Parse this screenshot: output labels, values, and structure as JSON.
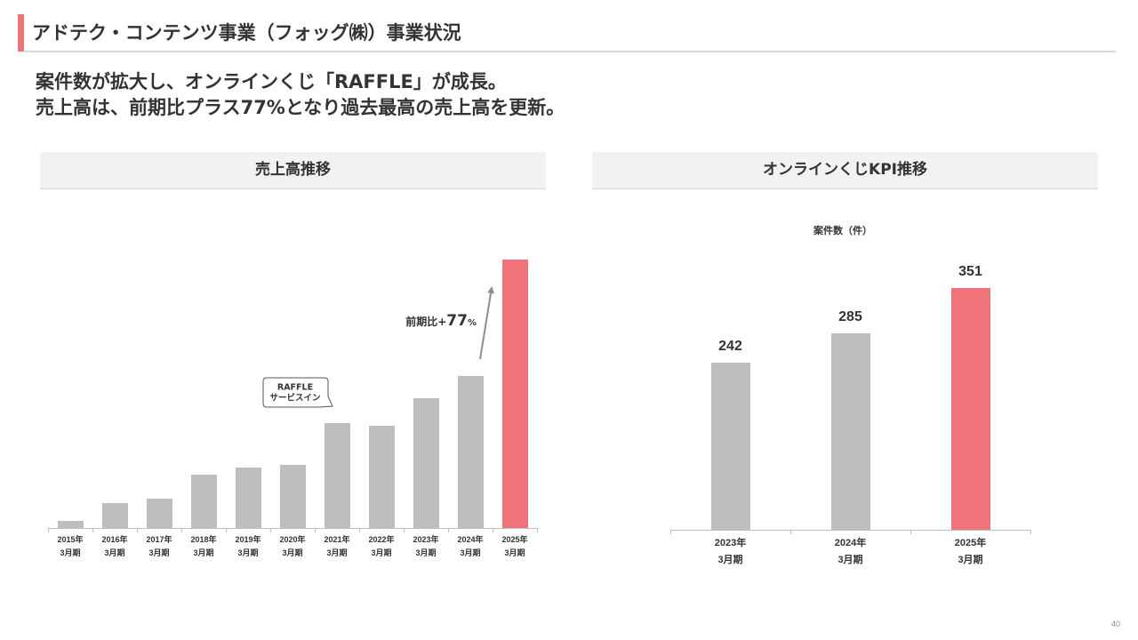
{
  "header": {
    "title": "アドテク・コンテンツ事業（フォッグ㈱）事業状況",
    "accent_color": "#EC7479"
  },
  "summary": {
    "lines": [
      "案件数が拡大し、オンラインくじ「RAFFLE」が成長。",
      "売上高は、前期比プラス77%となり過去最高の売上高を更新。"
    ]
  },
  "page_number": "40",
  "chart_data": [
    {
      "type": "bar",
      "title": "売上高推移",
      "categories": [
        "2015年\n3月期",
        "2016年\n3月期",
        "2017年\n3月期",
        "2018年\n3月期",
        "2019年\n3月期",
        "2020年\n3月期",
        "2021年\n3月期",
        "2022年\n3月期",
        "2023年\n3月期",
        "2024年\n3月期",
        "2025年\n3月期"
      ],
      "values": [
        2.6,
        9.3,
        10.9,
        19.9,
        22.5,
        23.5,
        39.1,
        38.1,
        48.3,
        56.6,
        100
      ],
      "ylim": [
        0,
        100
      ],
      "highlight_index": 10,
      "colors": {
        "bar": "#C0BEBC",
        "highlight": "#EF7479"
      },
      "grid": false,
      "legend": "none",
      "annotations": {
        "callout": [
          "RAFFLE",
          "サービスイン"
        ],
        "growth_label": {
          "prefix": "前期比+",
          "number": "77",
          "unit": "%"
        }
      }
    },
    {
      "type": "bar",
      "title": "オンラインくじKPI推移",
      "subtitle": "案件数（件）",
      "categories": [
        "2023年\n3月期",
        "2024年\n3月期",
        "2025年\n3月期"
      ],
      "values": [
        242,
        285,
        351
      ],
      "ylim": [
        0,
        400
      ],
      "highlight_index": 2,
      "colors": {
        "bar": "#C0BEBC",
        "highlight": "#EF7479"
      },
      "grid": false,
      "legend": "none"
    }
  ]
}
